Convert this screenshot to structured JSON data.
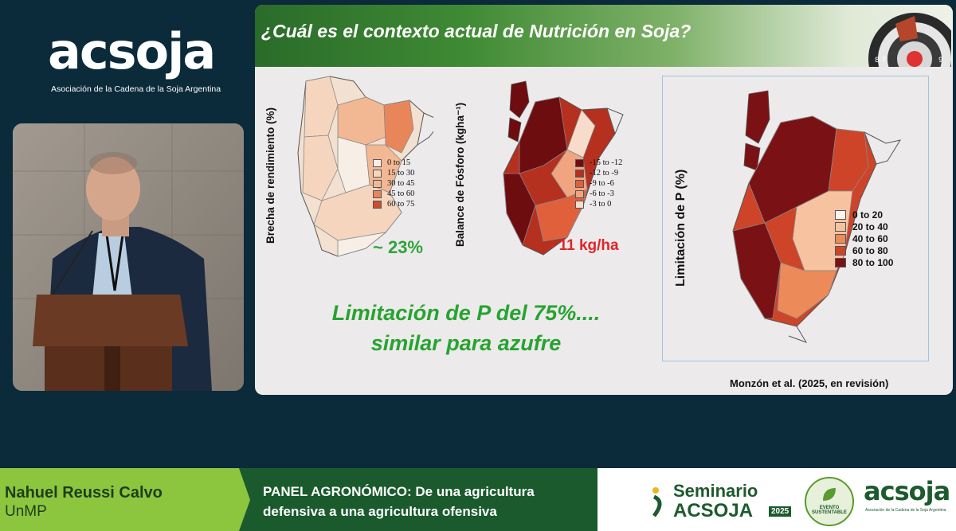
{
  "logo": {
    "wordmark": "acsoja",
    "subtitle": "Asociación de la Cadena de la Soja Argentina"
  },
  "slide": {
    "title": "¿Cuál es el contexto actual de Nutrición en Soja?",
    "map1": {
      "ylabel": "Brecha de rendimiento (%)",
      "legend": [
        "0 to 15",
        "15 to 30",
        "30 to 45",
        "45 to 60",
        "60 to 75"
      ],
      "colors": [
        "#f7efe6",
        "#f6d5bf",
        "#f2b893",
        "#e8865a",
        "#c9502b"
      ],
      "stat": "~ 23%"
    },
    "map2": {
      "ylabel": "Balance de Fósforo (kgha⁻¹)",
      "legend": [
        "-15 to -12",
        "-12 to -9",
        "-9 to -6",
        "-6 to -3",
        "-3 to 0"
      ],
      "colors": [
        "#6e0d10",
        "#b5301f",
        "#e0603b",
        "#f0a47f",
        "#f8dccb"
      ],
      "stat": "- 11 kg/ha"
    },
    "map3": {
      "ylabel": "Limitación de P (%)",
      "legend": [
        "0 to 20",
        "20 to 40",
        "40 to 60",
        "60 to 80",
        "80 to 100"
      ],
      "colors": [
        "#fbf3ec",
        "#f6c2a0",
        "#ec8a5a",
        "#cd4429",
        "#7a1215"
      ]
    },
    "headline_line1": "Limitación de P del 75%....",
    "headline_line2": "similar para azufre",
    "citation": "Monzón et al. (2025, en revisión)"
  },
  "lower_third": {
    "speaker_name": "Nahuel Reussi Calvo",
    "speaker_org": "UnMP",
    "panel_line1": "PANEL AGRONÓMICO: De una agricultura",
    "panel_line2": "defensiva a una agricultura ofensiva",
    "event_line1": "Seminario",
    "event_line2": "ACSOJA",
    "event_year": "2025",
    "badge_text": "EVENTO SUSTENTABLE",
    "logo_wordmark": "acsoja",
    "logo_subtitle": "Asociación de la Cadena de la Soja Argentina"
  },
  "colors": {
    "background": "#0b2a3a",
    "accent_green": "#8cc63f",
    "dark_green": "#1a5a2c",
    "headline_green": "#27a331",
    "stat_red": "#e0252a"
  }
}
